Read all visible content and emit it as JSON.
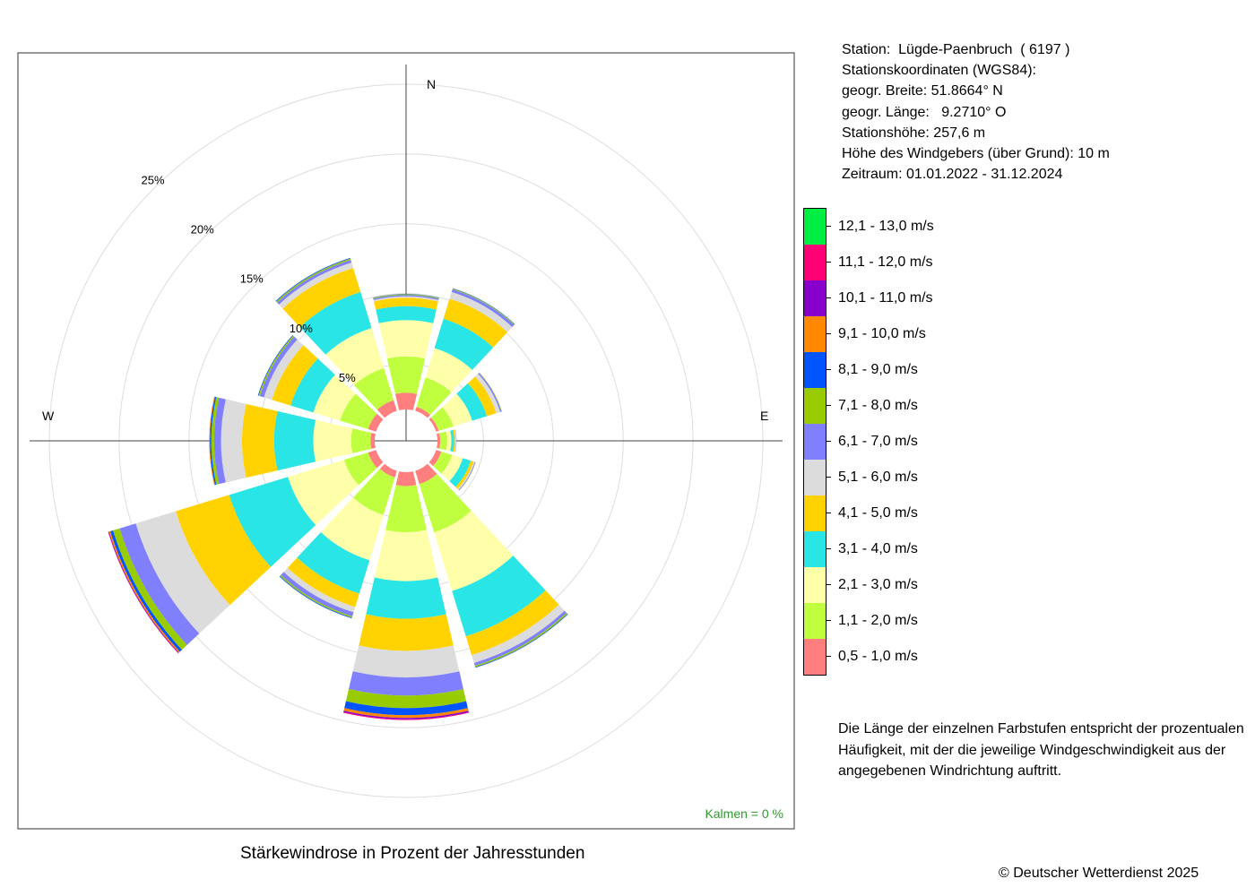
{
  "chart_data": {
    "type": "wind-rose",
    "title": "Stärkewindrose in Prozent der Jahresstunden",
    "directions": [
      "N",
      "30°",
      "60°",
      "E",
      "120°",
      "150°",
      "S",
      "210°",
      "240°",
      "W",
      "300°",
      "330°"
    ],
    "axis_labels": {
      "north": "N",
      "east": "E",
      "west": "W"
    },
    "radial_max": 25,
    "ring_ticks": [
      "5%",
      "10%",
      "15%",
      "20%",
      "25%"
    ],
    "ring_values": [
      5,
      10,
      15,
      20,
      25
    ],
    "inner_hole": 1.7,
    "classes": [
      {
        "label": "0,5 - 1,0 m/s",
        "color": "#ff7f7f"
      },
      {
        "label": "1,1 - 2,0 m/s",
        "color": "#bfff3f"
      },
      {
        "label": "2,1 - 3,0 m/s",
        "color": "#ffffaa"
      },
      {
        "label": "3,1 - 4,0 m/s",
        "color": "#2ae5e5"
      },
      {
        "label": "4,1 - 5,0 m/s",
        "color": "#ffd200"
      },
      {
        "label": "5,1 - 6,0 m/s",
        "color": "#dcdcdc"
      },
      {
        "label": "6,1 - 7,0 m/s",
        "color": "#8080ff"
      },
      {
        "label": "7,1 - 8,0 m/s",
        "color": "#99cc00"
      },
      {
        "label": "8,1 - 9,0 m/s",
        "color": "#0055ff"
      },
      {
        "label": "9,1 - 10,0 m/s",
        "color": "#ff8800"
      },
      {
        "label": "10,1 - 11,0 m/s",
        "color": "#8800cc"
      },
      {
        "label": "11,1 - 12,0 m/s",
        "color": "#ff0077"
      },
      {
        "label": "12,1 - 13,0 m/s",
        "color": "#00ee44"
      }
    ],
    "series": [
      {
        "direction": "N",
        "values": [
          1.2,
          2.6,
          2.6,
          1.0,
          0.6,
          0.1,
          0.1,
          0.05,
          0.03,
          0,
          0,
          0,
          0
        ]
      },
      {
        "direction": "30°",
        "values": [
          0.3,
          2.2,
          2.2,
          2.2,
          1.5,
          0.5,
          0.2,
          0.05,
          0.03,
          0,
          0,
          0,
          0
        ]
      },
      {
        "direction": "60°",
        "values": [
          0.2,
          1.1,
          1.4,
          1.1,
          0.7,
          0.3,
          0.1,
          0.03,
          0,
          0,
          0,
          0,
          0
        ]
      },
      {
        "direction": "E",
        "values": [
          0.2,
          0.5,
          0.3,
          0.2,
          0.1,
          0.05,
          0.02,
          0,
          0,
          0,
          0,
          0,
          0
        ]
      },
      {
        "direction": "120°",
        "values": [
          0.4,
          0.8,
          0.8,
          0.6,
          0.2,
          0.1,
          0.05,
          0.02,
          0,
          0,
          0,
          0,
          0
        ]
      },
      {
        "direction": "150°",
        "values": [
          1.0,
          3.6,
          4.4,
          3.4,
          1.4,
          0.6,
          0.2,
          0.1,
          0.05,
          0,
          0,
          0,
          0
        ]
      },
      {
        "direction": "S",
        "values": [
          1.0,
          3.3,
          3.5,
          2.7,
          2.3,
          1.9,
          1.3,
          0.9,
          0.5,
          0.2,
          0.1,
          0.05,
          0
        ]
      },
      {
        "direction": "210°",
        "values": [
          0.5,
          2.8,
          3.4,
          2.5,
          1.0,
          0.4,
          0.3,
          0.1,
          0.05,
          0,
          0,
          0,
          0
        ]
      },
      {
        "direction": "240°",
        "values": [
          0.6,
          1.8,
          4.2,
          4.4,
          4.0,
          3.0,
          1.2,
          0.5,
          0.2,
          0.1,
          0.05,
          0.02,
          0
        ]
      },
      {
        "direction": "W",
        "values": [
          0.3,
          1.4,
          2.7,
          2.8,
          2.3,
          1.5,
          0.5,
          0.2,
          0.1,
          0.05,
          0,
          0,
          0
        ]
      },
      {
        "direction": "300°",
        "values": [
          0.6,
          2.1,
          2.0,
          1.7,
          1.4,
          0.6,
          0.3,
          0.1,
          0.05,
          0,
          0,
          0,
          0
        ]
      },
      {
        "direction": "330°",
        "values": [
          0.8,
          2.4,
          3.0,
          2.7,
          1.8,
          0.4,
          0.2,
          0.1,
          0.05,
          0,
          0,
          0,
          0
        ]
      }
    ],
    "calm": "Kalmen  =  0 %"
  },
  "station": {
    "line1": "Station:  Lügde-Paenbruch  ( 6197 )",
    "line2": "Stationskoordinaten (WGS84):",
    "line3": "geogr. Breite: 51.8664° N",
    "line4": "geogr. Länge:   9.2710° O",
    "line5": "Stationshöhe: 257,6 m",
    "line6": "Höhe des Windgebers (über Grund): 10 m",
    "line7": "Zeitraum: 01.01.2022 - 31.12.2024"
  },
  "note": "Die Länge der einzelnen Farbstufen entspricht der prozentualen Häufigkeit, mit der die jeweilige Windgeschwindigkeit aus der angegebenen Windrichtung auftritt.",
  "copyright": "© Deutscher Wetterdienst  2025"
}
